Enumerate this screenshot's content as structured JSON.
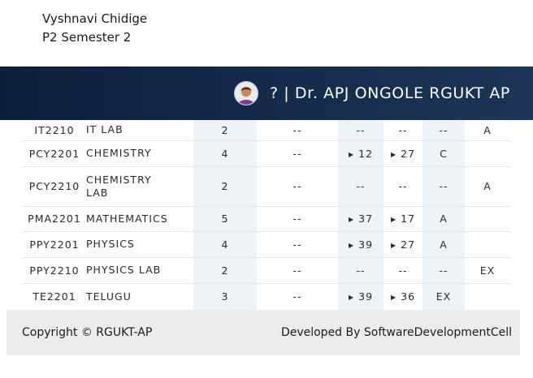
{
  "student": {
    "name": "Vyshnavi Chidige",
    "semester": "P2 Semester 2"
  },
  "header": {
    "question_mark": "?",
    "separator": "|",
    "title": "Dr. APJ ONGOLE RGUKT AP"
  },
  "table": {
    "rows": [
      {
        "code": "IT2210",
        "name": "IT LAB",
        "credits": "2",
        "c4": "--",
        "c5": "--",
        "c6": "--",
        "c7": "--",
        "c8": "A"
      },
      {
        "code": "PCY2201",
        "name": "CHEMISTRY",
        "credits": "4",
        "c4": "--",
        "c5": "12",
        "c6": "27",
        "c7": "C",
        "c8": ""
      },
      {
        "code": "PCY2210",
        "name": "CHEMISTRY LAB",
        "credits": "2",
        "c4": "--",
        "c5": "--",
        "c6": "--",
        "c7": "--",
        "c8": "A"
      },
      {
        "code": "PMA2201",
        "name": "MATHEMATICS",
        "credits": "5",
        "c4": "--",
        "c5": "37",
        "c6": "17",
        "c7": "A",
        "c8": ""
      },
      {
        "code": "PPY2201",
        "name": "PHYSICS",
        "credits": "4",
        "c4": "--",
        "c5": "39",
        "c6": "27",
        "c7": "A",
        "c8": ""
      },
      {
        "code": "PPY2210",
        "name": "PHYSICS LAB",
        "credits": "2",
        "c4": "--",
        "c5": "--",
        "c6": "--",
        "c7": "--",
        "c8": "EX"
      },
      {
        "code": "TE2201",
        "name": "TELUGU",
        "credits": "3",
        "c4": "--",
        "c5": "39",
        "c6": "36",
        "c7": "EX",
        "c8": ""
      }
    ]
  },
  "footer": {
    "copyright": "Copyright © RGUKT-AP",
    "developer": "Developed By SoftwareDevelopmentCell"
  }
}
